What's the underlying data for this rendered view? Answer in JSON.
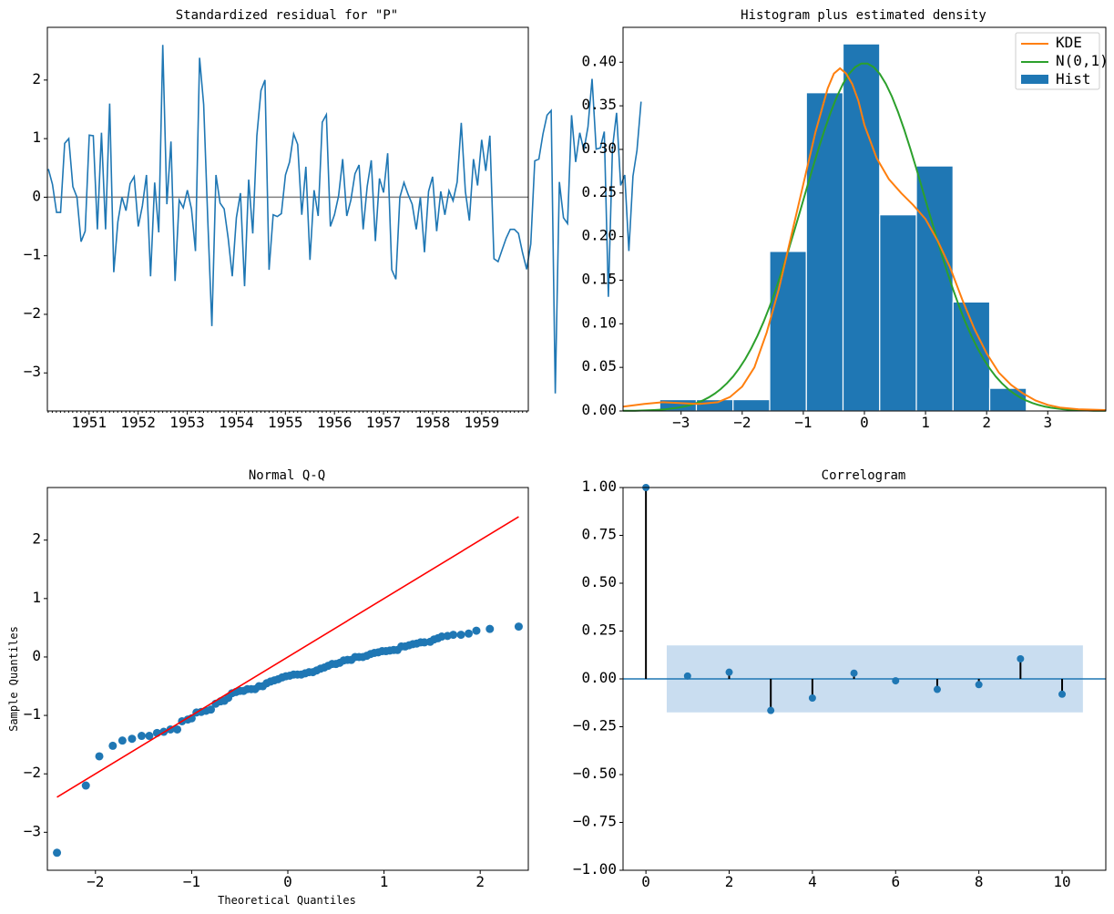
{
  "colors": {
    "blue": "#1f77b4",
    "orange": "#ff7f0e",
    "green": "#2ca02c",
    "red": "#ff0000",
    "band": "#c6dbef",
    "zero": "#808080"
  },
  "chart_data": [
    {
      "type": "line",
      "title": "Standardized residual for \"P\"",
      "xlabel": "",
      "ylabel": "",
      "xlim": [
        1950.15,
        1959.95
      ],
      "ylim": [
        -3.65,
        2.9
      ],
      "y_ticks": [
        2,
        1,
        0,
        -1,
        -2,
        -3
      ],
      "x_ticks": [
        "1951",
        "1952",
        "1953",
        "1954",
        "1955",
        "1956",
        "1957",
        "1958",
        "1959"
      ],
      "x_start": 1950.17,
      "x_step": 0.0833,
      "values": [
        0.48,
        0.22,
        -0.26,
        -0.26,
        0.92,
        1.0,
        0.18,
        0.0,
        -0.76,
        -0.58,
        1.06,
        1.05,
        -0.55,
        1.1,
        -0.55,
        1.6,
        -1.28,
        -0.42,
        0.0,
        -0.23,
        0.23,
        0.35,
        -0.5,
        -0.15,
        0.38,
        -1.35,
        0.25,
        -0.6,
        2.6,
        -0.12,
        0.95,
        -1.43,
        -0.05,
        -0.18,
        0.12,
        -0.2,
        -0.92,
        2.38,
        1.58,
        -0.38,
        -2.2,
        0.38,
        -0.1,
        -0.2,
        -0.7,
        -1.35,
        -0.35,
        0.07,
        -1.52,
        0.3,
        -0.62,
        1.05,
        1.82,
        2.0,
        -1.24,
        -0.3,
        -0.33,
        -0.28,
        0.38,
        0.6,
        1.08,
        0.9,
        -0.3,
        0.52,
        -1.07,
        0.12,
        -0.32,
        1.28,
        1.41,
        -0.5,
        -0.3,
        0.02,
        0.65,
        -0.32,
        -0.05,
        0.4,
        0.55,
        -0.55,
        0.18,
        0.63,
        -0.75,
        0.32,
        0.08,
        0.75,
        -1.24,
        -1.4,
        0.0,
        0.25,
        0.05,
        -0.12,
        -0.55,
        0.0,
        -0.94,
        0.1,
        0.35,
        -0.58,
        0.1,
        -0.3,
        0.11,
        -0.06,
        0.26,
        1.27,
        0.1,
        -0.4,
        0.65,
        0.2,
        0.98,
        0.45,
        1.05,
        -1.05,
        -1.1,
        -0.9,
        -0.7,
        -0.55,
        -0.55,
        -0.62,
        -0.95,
        -1.23,
        -0.8,
        0.62,
        0.65,
        1.08,
        1.4,
        1.48,
        -3.35,
        0.26,
        -0.35,
        -0.45,
        1.4,
        0.6,
        1.1,
        0.8,
        1.2,
        2.02,
        0.82,
        0.84,
        1.12,
        -1.7,
        0.84,
        1.44,
        0.2,
        0.38,
        -0.92,
        0.36,
        0.8,
        1.63
      ],
      "reference_line": 0
    },
    {
      "type": "bar",
      "title": "Histogram plus estimated density",
      "xlim": [
        -3.95,
        3.95
      ],
      "ylim": [
        0.0,
        0.44
      ],
      "x_ticks": [
        -3,
        -2,
        -1,
        0,
        1,
        2,
        3
      ],
      "y_ticks": [
        "0.00",
        "0.05",
        "0.10",
        "0.15",
        "0.20",
        "0.25",
        "0.30",
        "0.35",
        "0.40"
      ],
      "bin_edges": [
        -3.35,
        -2.75,
        -2.15,
        -1.55,
        -0.95,
        -0.35,
        0.25,
        0.85,
        1.45,
        2.05,
        2.65
      ],
      "bin_heights": [
        0.013,
        0.013,
        0.013,
        0.183,
        0.365,
        0.421,
        0.225,
        0.281,
        0.125,
        0.026
      ],
      "legend": [
        "KDE",
        "N(0,1)",
        "Hist"
      ],
      "legend_position": "top-right",
      "kde": {
        "x": [
          -3.95,
          -3.6,
          -3.3,
          -3.0,
          -2.7,
          -2.4,
          -2.2,
          -2.0,
          -1.8,
          -1.6,
          -1.4,
          -1.2,
          -1.0,
          -0.8,
          -0.6,
          -0.5,
          -0.4,
          -0.3,
          -0.2,
          -0.1,
          0.0,
          0.2,
          0.4,
          0.6,
          0.8,
          1.0,
          1.2,
          1.4,
          1.6,
          1.8,
          2.0,
          2.2,
          2.4,
          2.6,
          2.8,
          3.0,
          3.2,
          3.5,
          3.95
        ],
        "y": [
          0.005,
          0.008,
          0.01,
          0.009,
          0.008,
          0.01,
          0.016,
          0.028,
          0.05,
          0.09,
          0.14,
          0.2,
          0.26,
          0.32,
          0.37,
          0.387,
          0.393,
          0.387,
          0.375,
          0.356,
          0.328,
          0.29,
          0.266,
          0.25,
          0.236,
          0.22,
          0.195,
          0.165,
          0.128,
          0.094,
          0.066,
          0.044,
          0.03,
          0.02,
          0.012,
          0.007,
          0.004,
          0.002,
          0.001
        ]
      },
      "normal": {
        "mean": 0,
        "std": 1
      }
    },
    {
      "type": "scatter",
      "title": "Normal Q-Q",
      "xlabel": "Theoretical Quantiles",
      "ylabel": "Sample Quantiles",
      "xlim": [
        -2.5,
        2.5
      ],
      "ylim": [
        -3.65,
        2.9
      ],
      "x_ticks": [
        -2,
        -1,
        0,
        1,
        2
      ],
      "y_ticks": [
        2,
        1,
        0,
        -1,
        -2,
        -3
      ],
      "points": [
        [
          -2.4,
          -3.35
        ],
        [
          -2.1,
          -2.2
        ],
        [
          -1.96,
          -1.7
        ],
        [
          -1.82,
          -1.52
        ],
        [
          -1.72,
          -1.43
        ],
        [
          -1.62,
          -1.4
        ],
        [
          -1.52,
          -1.35
        ],
        [
          -1.44,
          -1.35
        ],
        [
          -1.36,
          -1.3
        ],
        [
          -1.29,
          -1.28
        ],
        [
          -1.22,
          -1.24
        ],
        [
          -1.15,
          -1.24
        ],
        [
          -1.1,
          -1.1
        ],
        [
          -1.04,
          -1.07
        ],
        [
          -1.0,
          -1.05
        ],
        [
          -0.95,
          -0.95
        ],
        [
          -0.9,
          -0.94
        ],
        [
          -0.85,
          -0.92
        ],
        [
          -0.8,
          -0.9
        ],
        [
          -0.75,
          -0.8
        ],
        [
          -0.7,
          -0.76
        ],
        [
          -0.66,
          -0.75
        ],
        [
          -0.62,
          -0.7
        ],
        [
          -0.58,
          -0.62
        ],
        [
          -0.54,
          -0.6
        ],
        [
          -0.5,
          -0.58
        ],
        [
          -0.46,
          -0.58
        ],
        [
          -0.42,
          -0.55
        ],
        [
          -0.38,
          -0.55
        ],
        [
          -0.34,
          -0.55
        ],
        [
          -0.3,
          -0.5
        ],
        [
          -0.26,
          -0.5
        ],
        [
          -0.22,
          -0.45
        ],
        [
          -0.18,
          -0.42
        ],
        [
          -0.14,
          -0.4
        ],
        [
          -0.1,
          -0.38
        ],
        [
          -0.06,
          -0.35
        ],
        [
          -0.02,
          -0.33
        ],
        [
          0.02,
          -0.32
        ],
        [
          0.06,
          -0.3
        ],
        [
          0.1,
          -0.3
        ],
        [
          0.14,
          -0.3
        ],
        [
          0.18,
          -0.28
        ],
        [
          0.22,
          -0.26
        ],
        [
          0.26,
          -0.26
        ],
        [
          0.3,
          -0.23
        ],
        [
          0.34,
          -0.2
        ],
        [
          0.38,
          -0.18
        ],
        [
          0.42,
          -0.15
        ],
        [
          0.46,
          -0.12
        ],
        [
          0.5,
          -0.12
        ],
        [
          0.54,
          -0.1
        ],
        [
          0.58,
          -0.06
        ],
        [
          0.62,
          -0.05
        ],
        [
          0.66,
          -0.05
        ],
        [
          0.7,
          0.0
        ],
        [
          0.74,
          0.0
        ],
        [
          0.78,
          0.0
        ],
        [
          0.82,
          0.02
        ],
        [
          0.86,
          0.05
        ],
        [
          0.9,
          0.07
        ],
        [
          0.94,
          0.08
        ],
        [
          0.98,
          0.1
        ],
        [
          1.02,
          0.1
        ],
        [
          1.06,
          0.11
        ],
        [
          1.1,
          0.12
        ],
        [
          1.14,
          0.12
        ],
        [
          1.18,
          0.18
        ],
        [
          1.22,
          0.18
        ],
        [
          1.26,
          0.2
        ],
        [
          1.3,
          0.22
        ],
        [
          1.34,
          0.23
        ],
        [
          1.38,
          0.25
        ],
        [
          1.42,
          0.25
        ],
        [
          1.48,
          0.26
        ],
        [
          1.52,
          0.3
        ],
        [
          1.56,
          0.32
        ],
        [
          1.6,
          0.35
        ],
        [
          1.66,
          0.36
        ],
        [
          1.72,
          0.38
        ],
        [
          1.8,
          0.38
        ],
        [
          1.88,
          0.4
        ],
        [
          1.96,
          0.45
        ],
        [
          2.1,
          0.48
        ],
        [
          2.4,
          0.52
        ]
      ],
      "reference_line": {
        "slope": 1,
        "intercept": 0
      }
    },
    {
      "type": "stem",
      "title": "Correlogram",
      "xlim": [
        -0.55,
        11.05
      ],
      "ylim": [
        -1.0,
        1.0
      ],
      "x_ticks": [
        0,
        2,
        4,
        6,
        8,
        10
      ],
      "y_ticks": [
        "1.00",
        "0.75",
        "0.50",
        "0.25",
        "0.00",
        "−0.25",
        "−0.50",
        "−0.75",
        "−1.00"
      ],
      "lags": [
        0,
        1,
        2,
        3,
        4,
        5,
        6,
        7,
        8,
        9,
        10
      ],
      "values": [
        1.0,
        0.015,
        0.035,
        -0.165,
        -0.1,
        0.03,
        -0.01,
        -0.055,
        -0.03,
        0.105,
        -0.08
      ],
      "confidence_band": [
        -0.175,
        0.175
      ],
      "band_x": [
        0.5,
        10.5
      ]
    }
  ]
}
